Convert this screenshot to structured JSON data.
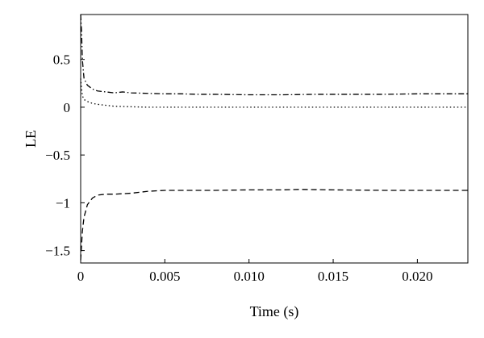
{
  "chart_data": {
    "type": "line",
    "title": "",
    "xlabel": "Time (s)",
    "ylabel": "LE",
    "xlim": [
      0,
      0.023
    ],
    "ylim": [
      -1.63,
      0.97
    ],
    "x_ticks": [
      0,
      0.005,
      0.01,
      0.015,
      0.02
    ],
    "x_tick_labels": [
      "0",
      "0.005",
      "0.010",
      "0.015",
      "0.020"
    ],
    "y_ticks": [
      0.5,
      0,
      -0.5,
      -1,
      -1.5
    ],
    "y_tick_labels": [
      "0.5",
      "0",
      "−0.5",
      "−1",
      "−1.5"
    ],
    "grid": false,
    "legend": "none",
    "line_color": "#000000",
    "series": [
      {
        "style": "dash-dot",
        "x": [
          0,
          5e-05,
          0.0001,
          0.0002,
          0.0004,
          0.0007,
          0.001,
          0.0015,
          0.002,
          0.0025,
          0.003,
          0.004,
          0.005,
          0.006,
          0.007,
          0.008,
          0.01,
          0.012,
          0.014,
          0.016,
          0.018,
          0.02,
          0.023
        ],
        "y": [
          0.97,
          0.8,
          0.5,
          0.3,
          0.23,
          0.19,
          0.17,
          0.16,
          0.15,
          0.16,
          0.15,
          0.145,
          0.14,
          0.14,
          0.135,
          0.135,
          0.13,
          0.13,
          0.135,
          0.135,
          0.135,
          0.14,
          0.14
        ]
      },
      {
        "style": "dotted",
        "x": [
          0,
          5e-05,
          0.0001,
          0.0002,
          0.0004,
          0.0007,
          0.001,
          0.0015,
          0.002,
          0.003,
          0.004,
          0.005,
          0.007,
          0.01,
          0.013,
          0.016,
          0.02,
          0.023
        ],
        "y": [
          0.3,
          0.2,
          0.12,
          0.08,
          0.06,
          0.04,
          0.03,
          0.02,
          0.01,
          0.005,
          0.0,
          0.0,
          0.0,
          0.0,
          0.0,
          0.0,
          0.0,
          0.0
        ]
      },
      {
        "style": "dashed",
        "x": [
          0,
          5e-05,
          0.0001,
          0.0002,
          0.0004,
          0.0007,
          0.001,
          0.0015,
          0.002,
          0.003,
          0.004,
          0.005,
          0.006,
          0.008,
          0.01,
          0.012,
          0.013,
          0.015,
          0.018,
          0.02,
          0.023
        ],
        "y": [
          -1.6,
          -1.45,
          -1.3,
          -1.15,
          -1.02,
          -0.95,
          -0.92,
          -0.91,
          -0.91,
          -0.9,
          -0.88,
          -0.87,
          -0.87,
          -0.87,
          -0.865,
          -0.865,
          -0.86,
          -0.865,
          -0.87,
          -0.87,
          -0.87
        ]
      }
    ]
  }
}
